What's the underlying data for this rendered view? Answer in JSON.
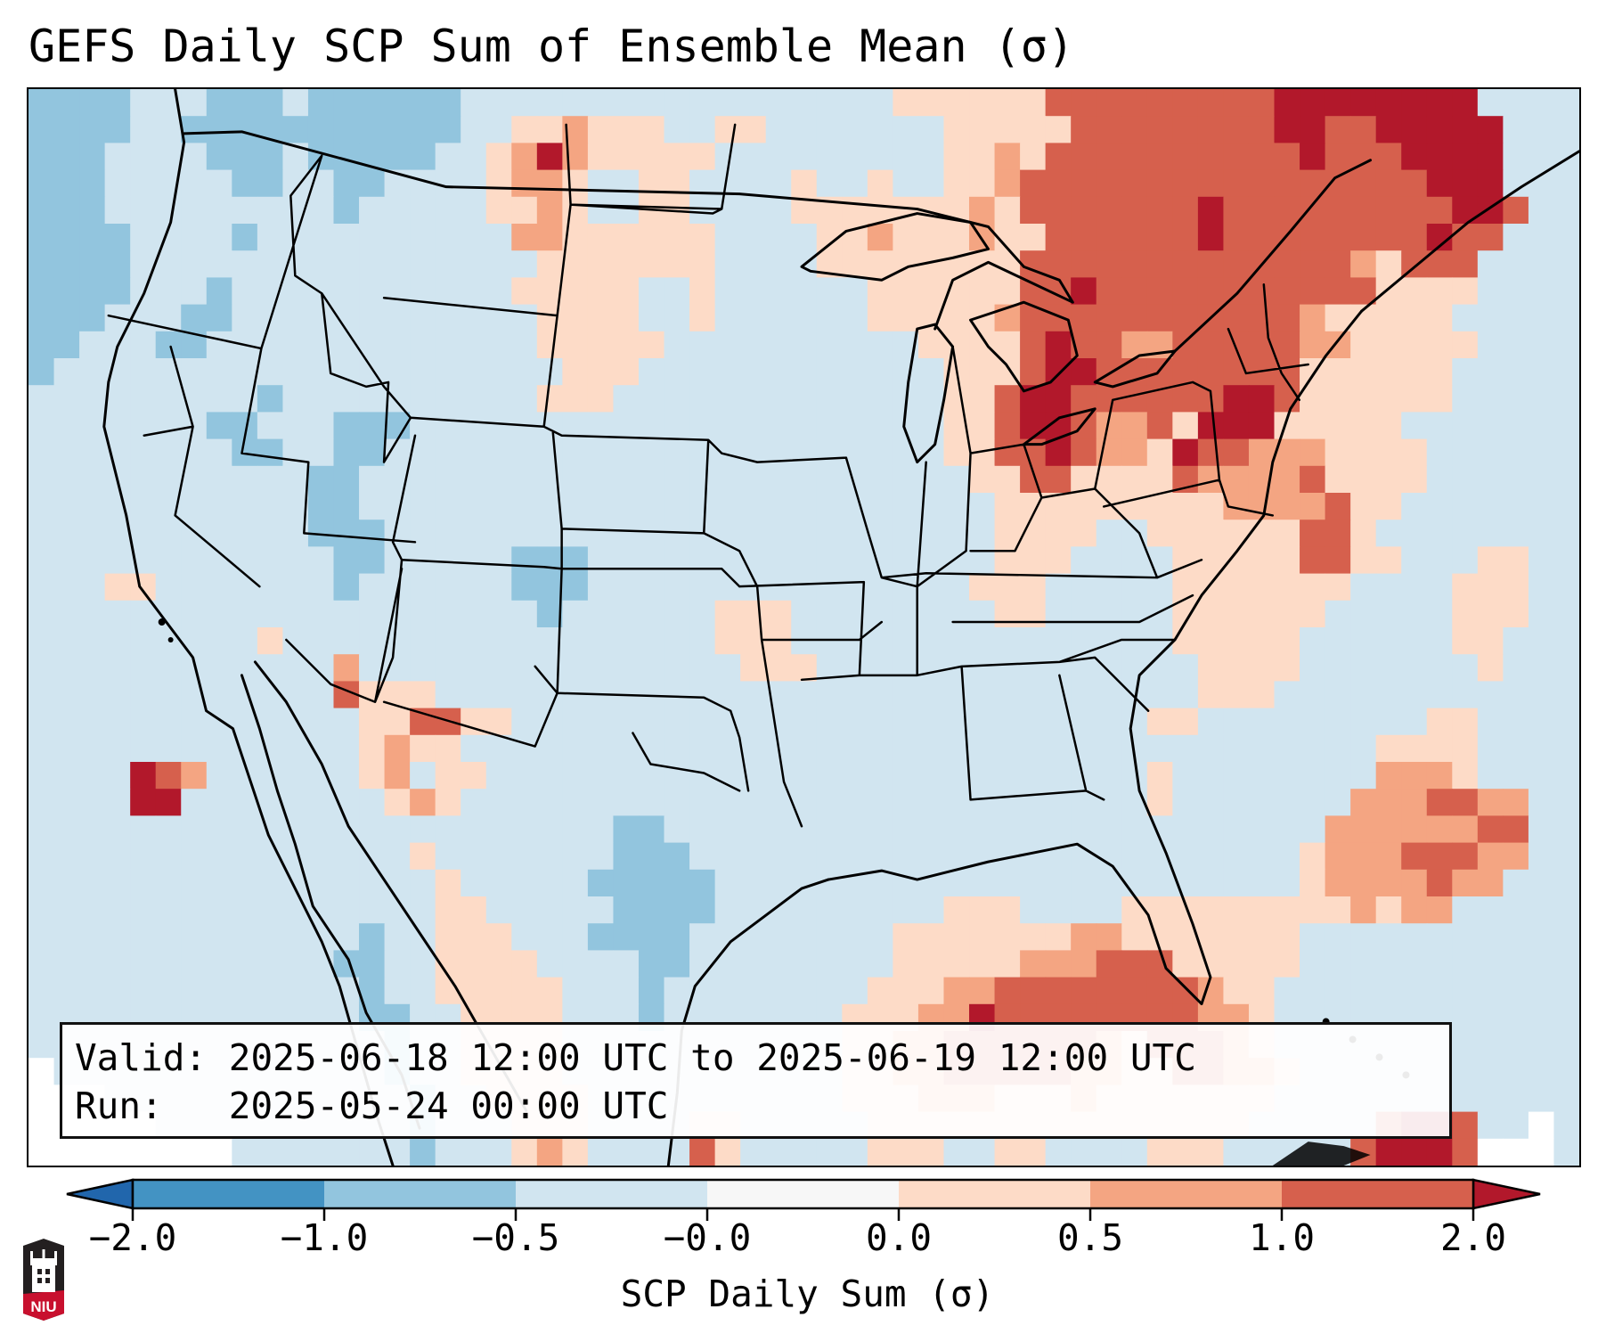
{
  "title": "GEFS Daily SCP Sum of Ensemble Mean (σ)",
  "info_box": {
    "valid_line": "Valid: 2025-06-18 12:00 UTC to 2025-06-19 12:00 UTC",
    "run_line": "Run:   2025-05-24 00:00 UTC"
  },
  "logo": {
    "text": "NIU",
    "icon": "niu-logo-icon"
  },
  "colorbar": {
    "label": "SCP Daily Sum (σ)",
    "ticks": [
      "−2.0",
      "−1.0",
      "−0.5",
      "−0.0",
      "0.0",
      "0.5",
      "1.0",
      "2.0"
    ],
    "levels": [
      -2.0,
      -1.0,
      -0.5,
      0.0,
      0.0,
      0.5,
      1.0,
      2.0
    ],
    "colors": {
      "under": "#2166ac",
      "B1": "#4393c3",
      "B": "#92c5de",
      "b": "#d1e5f0",
      "w": "#f7f7f7",
      "p": "#fddbc7",
      "o": "#f4a582",
      "r": "#d6604d",
      "over": "#b2182b"
    },
    "extend": "both"
  },
  "chart_data": {
    "type": "heatmap",
    "title": "GEFS Daily SCP Sum of Ensemble Mean (σ)",
    "colorbar_label": "SCP Daily Sum (σ)",
    "value_bins": {
      "B": "-1.0 to -0.5",
      "b": "-0.5 to 0.0",
      "p": "0.0 to 0.5",
      "o": "0.5 to 1.0",
      "r": "1.0 to 2.0",
      "R": "> 2.0",
      "-": "no data"
    },
    "grid_legend": "rows north to south, columns west to east; each char is one binned cell",
    "grid": [
      "BBBBbbbBBBbBBBBBBbbbbbbbbbbbbbbbbbpppppprrrrrrrrrRRRRRRRR",
      "BBBBbbBBBBBBBBBBBbbppopppbbppbbbbbbbppppprrrrrrrrRRrrRRRRR",
      "BBBbbbbBBBbBBBBBbbpoRopppppbbbbbbbbbppoprrrrrrrrrrRrrrRRRR",
      "BBBbbbbbBBbbBBbbbbpoopbbppbbbbpbbpbbpporrrrrrrrrrrrrrrrRRR",
      "BBBbbbbbbbbbBbbbbbppopbbppbbbbpppppppoprrrrrrrRrrrrrrrrrRRr",
      "BBBBbbbbBbbbbbbbbbbooppppppbbbbppopppopprrrrrrRrrrrrrrrRrrb",
      "BBBBbbbbbbbbbbbbbbbbpppppppbbbbpppppppprrrrrrrrrrrrroprrrbb",
      "BBBBbbbBbbbbbbbbbbbpppppbbpbbbbbbpppppprrRrrrrrrrrrrrppppbb",
      "BBBbbbBBbbbbbbbbbbbbppppbbpbbbbbbppppporrrrrrrrrrropppppbbb",
      "BBbbbBBbbbbbbbbbbbbbpppppbbbbbbbbbbpppprRrroorrrrroopppppbb",
      "BbbbbbbbbbbbbbbbbbbbbpppbbbbbbbbbbbbppprRRrrrrrrrrppppppbbb",
      "bbbbbbbbbBbbbbbbbbbbpppbbbbbbbbbbbbbpprRRrrrrrrRRrppppppbbb",
      "bbbbbbbBBbbbBBBbbbbbbbbbbbbbbbbbbbbbpprRRroorpRRRpppppbbbbb",
      "bbbbbbbbBBbbBBbbbbbbbbbbbbbbbbbbbbbbpprrRroopRrroooppppbbbb",
      "bbbbbbbbbbbBBbbbbbbbbbbbbbbbbbbbbbbbbpprrpppproooorppppbbbb",
      "bbbbbbbbbbbBBbbbbbbbbbbbbbbbbbbbbbbbbbpppppppppoooorppbbbbb",
      "bbbbbbbbbbbBBBbbbbbbbbbbbbbbbbbbbbbbbbppppbbpppppprrpbbbbbb",
      "bbbbbbbbbbbbBBbbbbbBBBbbbbbbbbbbbbbbbbpppbbbbppppprrppbbbpp",
      "bbbppbbbbbbbBbbbbbbBBBbbbbbbbbbbbbbbbpppbbbbbpppppppbbbbppp",
      "bbbbbbbbbbbbbbbbbbbbBbbbbbbpppbbbbbbbbppbbbbbppppppbbbbbppp",
      "bbbbbbbbbpbbbbbbbbbbbbbbbbbpppbbbbbbbbbbbbbbbpppppbbbbbbppb",
      "bbbbbbbbbbbbobbbbbbbbbbbbbbbpppbbbbbbbbbbbbbbbppppbbbbbbbpb",
      "bbbbbbbbbbbbrpppbbbbbbbbbbbbbbbbbbbbbbbbbbbbbbpppbbbbbbbbbbb",
      "bbbbbbbbbbbbbpprrppbbbbbbbbbbbbbbbbbbbbbbbbbppbbbbbbbbbppbb",
      "bbbbbbbbbbbbbpoppbbbbbbbbbbbbbbbbbbbbbbbbbbbbbbbbbbbbppppbb",
      "bbbbRrobbbbbbpobppbbbbbbbbbbbbbbbbbbbbbbbbbbpbbbbbbbbooopbb",
      "bbbbRRbbbbbbbbpopbbbbbbbbbbbbbbbbbbbbbbbbbbbpbbbbbbbooorroo",
      "bbbbbbbbbbbbbbbbbbbbbbbBBbbbbbbbbbbbbbbbbbbbbbbbbbboooooorr",
      "bbbbbbbbbbbbbbbpbbbbbbbBBBbbbbbbbbbbbbbbbbbbbbbbbbpooorrroo",
      "bbbbbbbbbbbbbbbbpbbbbbBBBBBbbbbbbbbbbbbbbbbbbbbbbbpooooroob",
      "bbbbbbbbbbbbbbbbppbbbbbBBBBbbbbbbbbbpppbbbbpppppppppopoobbbb",
      "bbbbbbbbbbbbbBbbpppbbbBBBBbbbbbbbbpppppppoopppppppbbbbbbbbbb",
      "bbbbbbbbbbbbBBbbppppbbbbBBbbbbbbbbpppppooorrrpppppbbbbbbbbbb",
      "bbbbbbbbbbbbbBbbpppppbbbBbbbbbbbbpppoorrrrrrrroppbbbbbbbbbbb",
      "bbbbbbbbbbbbbBBbbppppbbbBbbbbbbbpppooRrrrrrrrroopbbbbbbbbbbb",
      "bbbbbbbbbbbbbbBbbppppbbbbbbbbbbbppoorrrrrroprrropbbbbbbbbbbb",
      "-bbbbbbbbbbbbbBbbppppbbbbbbbbbbbppoorrrrroopprroopbbbbbbbbbbb",
      "---bbbbbbbbbbbbBbbppppbbbbbbbbbbpppooopppopppppppbbbbbbbbbbb",
      "-----bbbbbbbbbbBbbbpppbbbbppbbbbbpppppppppppppppbbbbbrRRrbb-",
      "--------bbbbbbbBbbbpopbbbbrpbbbbbpppbbppbbbbpppbbbbbrRRRr---"
    ]
  }
}
